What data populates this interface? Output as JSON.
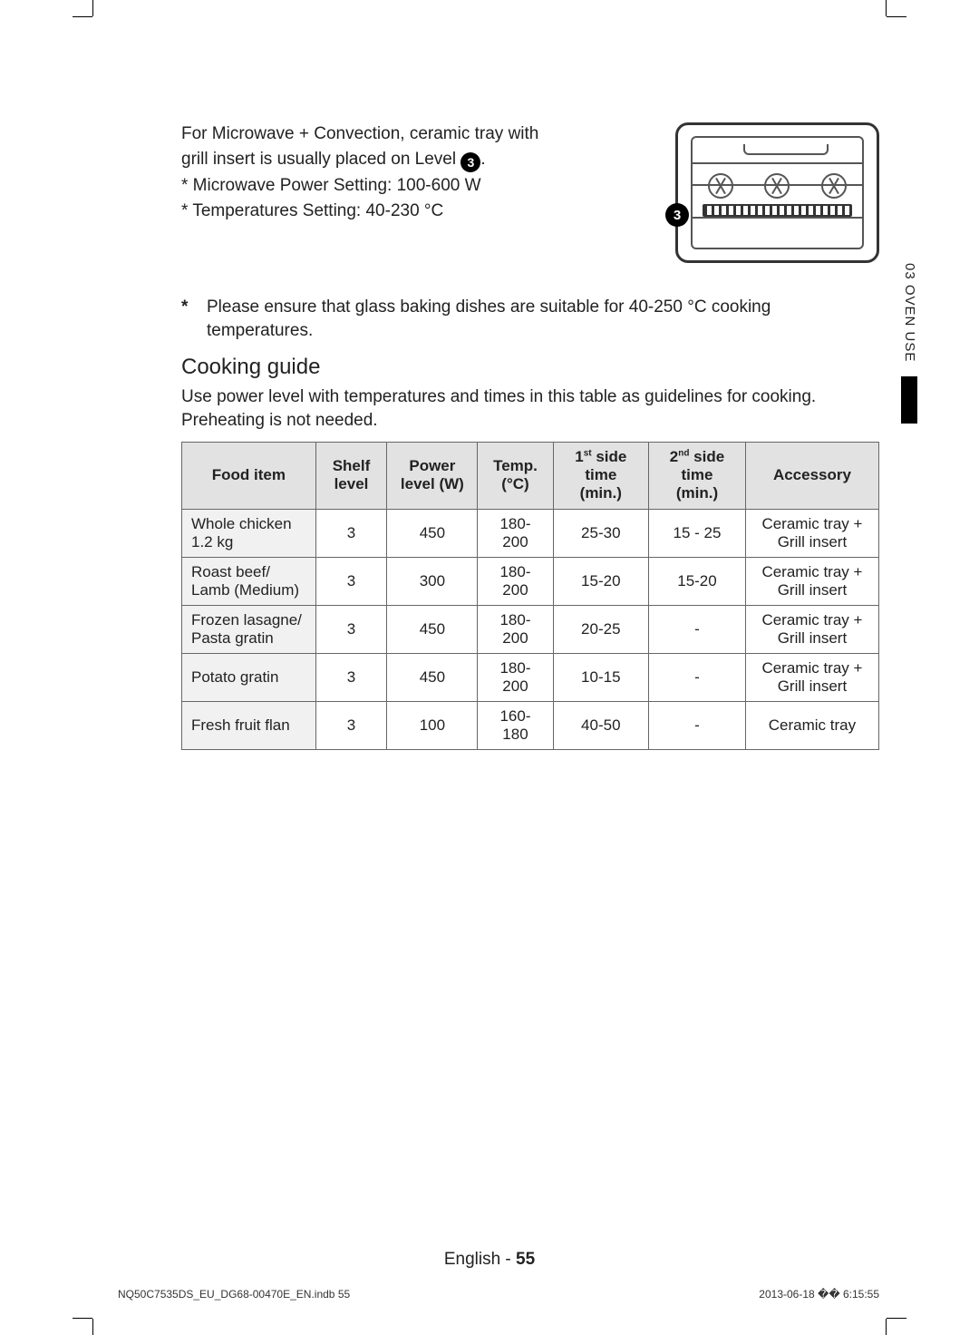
{
  "intro": {
    "line1_pre": "For Microwave + Convection, ceramic tray with ",
    "line1_mid": "grill insert is usually placed on Level ",
    "level_badge": "3",
    "line1_post": ".",
    "bullet1": "* Microwave Power Setting: 100-600 W",
    "bullet2": "* Temperatures Setting: 40-230 °C"
  },
  "oven": {
    "level_marker": "3"
  },
  "note": {
    "asterisk": "*",
    "text": "Please ensure that glass baking dishes are suitable for 40-250 °C cooking temperatures."
  },
  "guide": {
    "title": "Cooking guide",
    "desc1": "Use power level with temperatures and times in this table as guidelines for cooking.",
    "desc2": "Preheating is not needed."
  },
  "table": {
    "headers": {
      "food": "Food item",
      "shelf": "Shelf level",
      "power": "Power level (W)",
      "temp": "Temp. (°C)",
      "side1_pre": "1",
      "side1_sup": "st",
      "side1_post": " side time (min.)",
      "side2_pre": "2",
      "side2_sup": "nd",
      "side2_post": " side time (min.)",
      "accessory": "Accessory"
    },
    "rows": [
      {
        "food": "Whole chicken 1.2 kg",
        "shelf": "3",
        "power": "450",
        "temp": "180-200",
        "t1": "25-30",
        "t2": "15 - 25",
        "acc": "Ceramic tray + Grill insert"
      },
      {
        "food": "Roast beef/ Lamb (Medium)",
        "shelf": "3",
        "power": "300",
        "temp": "180-200",
        "t1": "15-20",
        "t2": "15-20",
        "acc": "Ceramic tray + Grill insert"
      },
      {
        "food": "Frozen lasagne/ Pasta gratin",
        "shelf": "3",
        "power": "450",
        "temp": "180-200",
        "t1": "20-25",
        "t2": "-",
        "acc": "Ceramic tray + Grill insert"
      },
      {
        "food": "Potato gratin",
        "shelf": "3",
        "power": "450",
        "temp": "180-200",
        "t1": "10-15",
        "t2": "-",
        "acc": "Ceramic tray + Grill insert"
      },
      {
        "food": "Fresh fruit flan",
        "shelf": "3",
        "power": "100",
        "temp": "160-180",
        "t1": "40-50",
        "t2": "-",
        "acc": "Ceramic tray"
      }
    ]
  },
  "sidetab": {
    "label": "03  OVEN USE"
  },
  "footer": {
    "lang": "English - ",
    "page": "55",
    "left": "NQ50C7535DS_EU_DG68-00470E_EN.indb   55",
    "right": "2013-06-18   �� 6:15:55"
  },
  "colors": {
    "header_bg": "#e2e2e2",
    "food_bg": "#f1f1f1",
    "border": "#666666",
    "text": "#222222"
  }
}
